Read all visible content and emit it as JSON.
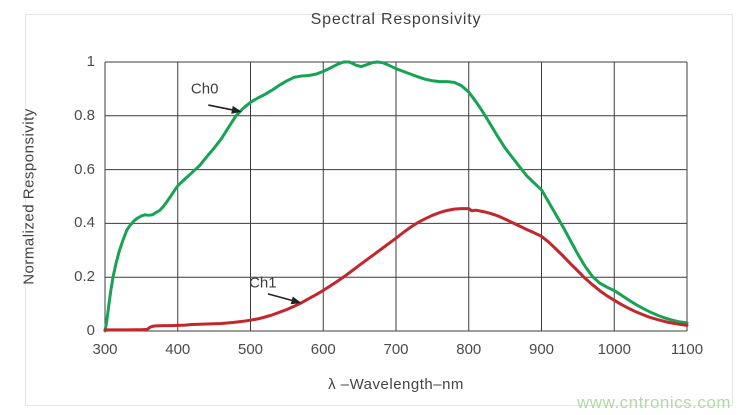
{
  "page": {
    "watermark": "www.cntronics.com",
    "watermark_color": "#b3d8aa"
  },
  "chart_data": {
    "type": "line",
    "title": "Spectral Responsivity",
    "xlabel": "λ –Wavelength–nm",
    "ylabel": "Normalized Responsivity",
    "xlim": [
      300,
      1100
    ],
    "ylim": [
      0,
      1
    ],
    "xticks": [
      300,
      400,
      500,
      600,
      700,
      800,
      900,
      1000,
      1100
    ],
    "yticks": [
      0,
      0.2,
      0.4,
      0.6,
      0.8,
      1
    ],
    "grid": true,
    "legend": "inline-annotations",
    "grid_color": "#3c3c3c",
    "series": [
      {
        "name": "Ch0",
        "color": "#17a353",
        "points": [
          [
            300,
            0
          ],
          [
            302,
            0.03
          ],
          [
            305,
            0.09
          ],
          [
            308,
            0.15
          ],
          [
            311,
            0.2
          ],
          [
            315,
            0.25
          ],
          [
            320,
            0.3
          ],
          [
            325,
            0.34
          ],
          [
            330,
            0.375
          ],
          [
            335,
            0.395
          ],
          [
            340,
            0.41
          ],
          [
            345,
            0.42
          ],
          [
            350,
            0.428
          ],
          [
            355,
            0.432
          ],
          [
            360,
            0.43
          ],
          [
            365,
            0.432
          ],
          [
            370,
            0.44
          ],
          [
            375,
            0.448
          ],
          [
            380,
            0.462
          ],
          [
            385,
            0.48
          ],
          [
            390,
            0.5
          ],
          [
            395,
            0.52
          ],
          [
            400,
            0.54
          ],
          [
            410,
            0.565
          ],
          [
            420,
            0.59
          ],
          [
            430,
            0.615
          ],
          [
            440,
            0.648
          ],
          [
            450,
            0.68
          ],
          [
            460,
            0.715
          ],
          [
            470,
            0.758
          ],
          [
            480,
            0.8
          ],
          [
            490,
            0.828
          ],
          [
            500,
            0.85
          ],
          [
            510,
            0.866
          ],
          [
            520,
            0.88
          ],
          [
            530,
            0.896
          ],
          [
            540,
            0.914
          ],
          [
            550,
            0.93
          ],
          [
            560,
            0.943
          ],
          [
            570,
            0.948
          ],
          [
            580,
            0.95
          ],
          [
            590,
            0.955
          ],
          [
            600,
            0.965
          ],
          [
            610,
            0.978
          ],
          [
            620,
            0.992
          ],
          [
            628,
            1.0
          ],
          [
            636,
            1.0
          ],
          [
            645,
            0.988
          ],
          [
            652,
            0.983
          ],
          [
            660,
            0.99
          ],
          [
            668,
            0.998
          ],
          [
            675,
            1.0
          ],
          [
            682,
            0.997
          ],
          [
            690,
            0.988
          ],
          [
            700,
            0.975
          ],
          [
            710,
            0.965
          ],
          [
            720,
            0.955
          ],
          [
            730,
            0.945
          ],
          [
            740,
            0.936
          ],
          [
            750,
            0.93
          ],
          [
            760,
            0.927
          ],
          [
            770,
            0.927
          ],
          [
            780,
            0.924
          ],
          [
            790,
            0.912
          ],
          [
            800,
            0.888
          ],
          [
            810,
            0.852
          ],
          [
            820,
            0.812
          ],
          [
            830,
            0.767
          ],
          [
            840,
            0.722
          ],
          [
            850,
            0.68
          ],
          [
            860,
            0.645
          ],
          [
            870,
            0.61
          ],
          [
            880,
            0.576
          ],
          [
            890,
            0.55
          ],
          [
            900,
            0.525
          ],
          [
            910,
            0.478
          ],
          [
            920,
            0.432
          ],
          [
            930,
            0.385
          ],
          [
            940,
            0.335
          ],
          [
            950,
            0.285
          ],
          [
            960,
            0.24
          ],
          [
            970,
            0.203
          ],
          [
            980,
            0.178
          ],
          [
            990,
            0.163
          ],
          [
            1000,
            0.15
          ],
          [
            1010,
            0.133
          ],
          [
            1020,
            0.115
          ],
          [
            1030,
            0.098
          ],
          [
            1040,
            0.083
          ],
          [
            1050,
            0.07
          ],
          [
            1060,
            0.058
          ],
          [
            1070,
            0.048
          ],
          [
            1080,
            0.04
          ],
          [
            1090,
            0.034
          ],
          [
            1100,
            0.03
          ]
        ]
      },
      {
        "name": "Ch1",
        "color": "#c1272d",
        "points": [
          [
            300,
            0.004
          ],
          [
            310,
            0.004
          ],
          [
            320,
            0.004
          ],
          [
            330,
            0.004
          ],
          [
            340,
            0.005
          ],
          [
            350,
            0.005
          ],
          [
            358,
            0.006
          ],
          [
            362,
            0.014
          ],
          [
            366,
            0.018
          ],
          [
            370,
            0.019
          ],
          [
            380,
            0.02
          ],
          [
            390,
            0.02
          ],
          [
            400,
            0.021
          ],
          [
            410,
            0.022
          ],
          [
            420,
            0.024
          ],
          [
            430,
            0.025
          ],
          [
            440,
            0.026
          ],
          [
            450,
            0.027
          ],
          [
            460,
            0.028
          ],
          [
            470,
            0.03
          ],
          [
            480,
            0.033
          ],
          [
            490,
            0.036
          ],
          [
            500,
            0.04
          ],
          [
            510,
            0.045
          ],
          [
            520,
            0.052
          ],
          [
            530,
            0.06
          ],
          [
            540,
            0.07
          ],
          [
            550,
            0.08
          ],
          [
            560,
            0.092
          ],
          [
            570,
            0.105
          ],
          [
            580,
            0.12
          ],
          [
            590,
            0.135
          ],
          [
            600,
            0.151
          ],
          [
            610,
            0.168
          ],
          [
            620,
            0.186
          ],
          [
            630,
            0.205
          ],
          [
            640,
            0.225
          ],
          [
            650,
            0.245
          ],
          [
            660,
            0.265
          ],
          [
            670,
            0.285
          ],
          [
            680,
            0.305
          ],
          [
            690,
            0.325
          ],
          [
            700,
            0.345
          ],
          [
            710,
            0.366
          ],
          [
            720,
            0.386
          ],
          [
            730,
            0.403
          ],
          [
            740,
            0.417
          ],
          [
            750,
            0.43
          ],
          [
            760,
            0.44
          ],
          [
            770,
            0.448
          ],
          [
            780,
            0.453
          ],
          [
            790,
            0.455
          ],
          [
            800,
            0.455
          ],
          [
            804,
            0.447
          ],
          [
            810,
            0.449
          ],
          [
            820,
            0.444
          ],
          [
            830,
            0.437
          ],
          [
            840,
            0.428
          ],
          [
            850,
            0.416
          ],
          [
            860,
            0.403
          ],
          [
            870,
            0.39
          ],
          [
            880,
            0.377
          ],
          [
            890,
            0.365
          ],
          [
            900,
            0.352
          ],
          [
            910,
            0.33
          ],
          [
            920,
            0.305
          ],
          [
            930,
            0.278
          ],
          [
            940,
            0.25
          ],
          [
            950,
            0.223
          ],
          [
            960,
            0.196
          ],
          [
            970,
            0.172
          ],
          [
            980,
            0.15
          ],
          [
            990,
            0.131
          ],
          [
            1000,
            0.114
          ],
          [
            1010,
            0.098
          ],
          [
            1020,
            0.084
          ],
          [
            1030,
            0.071
          ],
          [
            1040,
            0.06
          ],
          [
            1050,
            0.05
          ],
          [
            1060,
            0.042
          ],
          [
            1070,
            0.035
          ],
          [
            1080,
            0.029
          ],
          [
            1090,
            0.025
          ],
          [
            1100,
            0.021
          ]
        ]
      }
    ],
    "annotations": [
      {
        "label": "Ch0",
        "label_at": [
          437,
          0.9
        ],
        "arrow_from": [
          442,
          0.84
        ],
        "arrow_to": [
          488,
          0.815
        ]
      },
      {
        "label": "Ch1",
        "label_at": [
          517,
          0.178
        ],
        "arrow_from": [
          524,
          0.138
        ],
        "arrow_to": [
          570,
          0.104
        ]
      }
    ]
  }
}
